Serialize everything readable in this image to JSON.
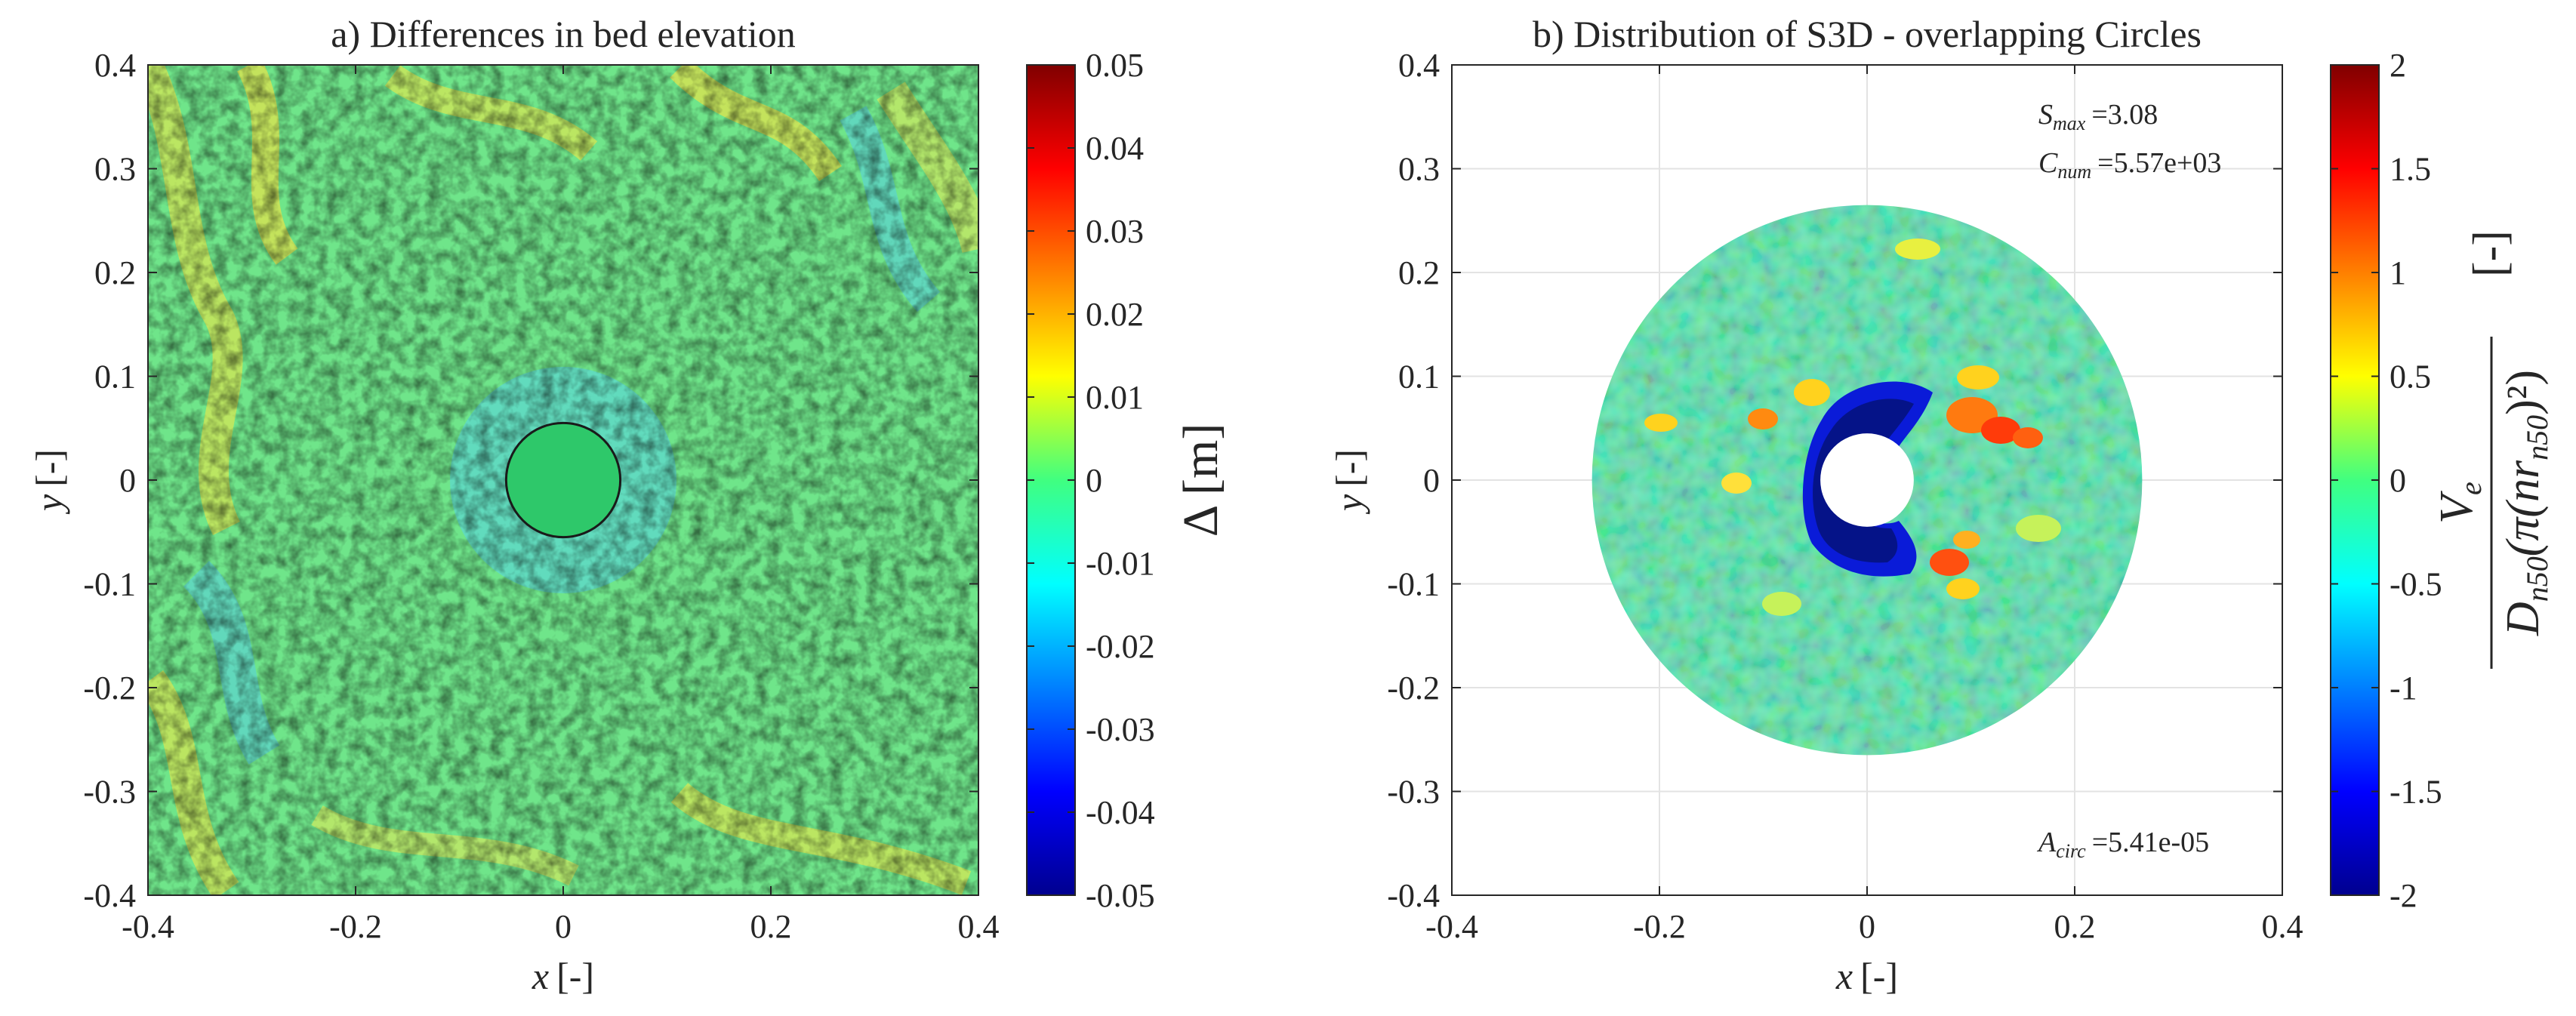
{
  "chart_data": [
    {
      "type": "heatmap",
      "title": "a) Differences in bed elevation",
      "xlabel": {
        "var": "x",
        "unit": "[-]"
      },
      "ylabel": {
        "var": "y",
        "unit": "[-]"
      },
      "xlim": [
        -0.4,
        0.4
      ],
      "ylim": [
        -0.4,
        0.4
      ],
      "x_ticks": [
        "-0.4",
        "-0.2",
        "0",
        "0.2",
        "0.4"
      ],
      "y_ticks": [
        "0.4",
        "0.3",
        "0.2",
        "0.1",
        "0",
        "-0.1",
        "-0.2",
        "-0.3",
        "-0.4"
      ],
      "colorbar": {
        "label": "Δ [m]",
        "range": [
          -0.05,
          0.05
        ],
        "ticks": [
          "0.05",
          "0.04",
          "0.03",
          "0.02",
          "0.01",
          "0",
          "-0.01",
          "-0.02",
          "-0.03",
          "-0.04",
          "-0.05"
        ]
      },
      "pile": {
        "center": [
          0,
          0
        ],
        "radius": 0.055
      }
    },
    {
      "type": "heatmap",
      "title": "b) Distribution of S3D - overlapping Circles",
      "xlabel": {
        "var": "x",
        "unit": "[-]"
      },
      "ylabel": {
        "var": "y",
        "unit": "[-]"
      },
      "xlim": [
        -0.4,
        0.4
      ],
      "ylim": [
        -0.4,
        0.4
      ],
      "x_ticks": [
        "-0.4",
        "-0.2",
        "0",
        "0.2",
        "0.4"
      ],
      "y_ticks": [
        "0.4",
        "0.3",
        "0.2",
        "0.1",
        "0",
        "-0.1",
        "-0.2",
        "-0.3",
        "-0.4"
      ],
      "grid": true,
      "domain": {
        "inner_radius": 0.045,
        "outer_radius": 0.265
      },
      "annotations": {
        "s_max": {
          "sym": "S",
          "sub": "max",
          "value": "=3.08"
        },
        "c_num": {
          "sym": "C",
          "sub": "num",
          "value": "=5.57e+03"
        },
        "a_circ": {
          "sym": "A",
          "sub": "circ",
          "value": "=5.41e-05"
        }
      },
      "colorbar": {
        "range": [
          -2,
          2
        ],
        "ticks": [
          "2",
          "1.5",
          "1",
          "0.5",
          "0",
          "-0.5",
          "-1",
          "-1.5",
          "-2"
        ],
        "label_unit": "[-]",
        "label_numerator": "V",
        "label_numerator_sub": "e",
        "label_denominator": "D",
        "label_denominator_sub": "n50",
        "label_denominator_rest": "(π(nr",
        "label_denominator_rest_sub": "n50",
        "label_denominator_tail": ")²)"
      }
    }
  ]
}
